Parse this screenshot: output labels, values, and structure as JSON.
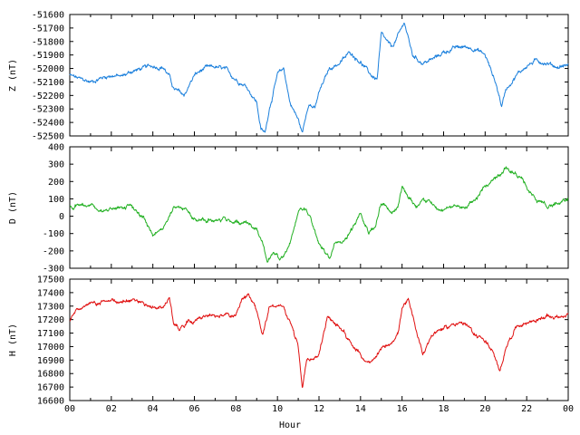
{
  "chart_data": [
    {
      "type": "line",
      "ylabel": "Z (nT)",
      "ylim": [
        -52500,
        -51600
      ],
      "yticks": [
        -52500,
        -52400,
        -52300,
        -52200,
        -52100,
        -52000,
        -51900,
        -51800,
        -51700,
        -51600
      ],
      "xlim": [
        0,
        24
      ],
      "xticks": [
        "00",
        "02",
        "04",
        "06",
        "08",
        "10",
        "12",
        "14",
        "16",
        "18",
        "20",
        "22",
        "00"
      ],
      "color": "#1a7fdc",
      "x": [
        0,
        0.5,
        1,
        1.5,
        2,
        2.5,
        3,
        3.5,
        4,
        4.5,
        4.8,
        5,
        5.5,
        6,
        6.5,
        7,
        7.5,
        8,
        8.5,
        9,
        9.2,
        9.4,
        9.6,
        10,
        10.3,
        10.6,
        11,
        11.2,
        11.5,
        11.8,
        12,
        12.5,
        13,
        13.5,
        14,
        14.5,
        14.8,
        15,
        15.5,
        16,
        16.1,
        16.5,
        17,
        17.5,
        18,
        18.5,
        19,
        19.5,
        20,
        20.5,
        20.8,
        21,
        21.5,
        22,
        22.5,
        23,
        23.5,
        24
      ],
      "values": [
        -52050,
        -52080,
        -52100,
        -52070,
        -52050,
        -52060,
        -52020,
        -52000,
        -51980,
        -51990,
        -52060,
        -52150,
        -52200,
        -52050,
        -52000,
        -51990,
        -52010,
        -52080,
        -52130,
        -52250,
        -52450,
        -52480,
        -52300,
        -52050,
        -52000,
        -52250,
        -52380,
        -52480,
        -52250,
        -52300,
        -52180,
        -52000,
        -51960,
        -51880,
        -51950,
        -52050,
        -52080,
        -51750,
        -51850,
        -51700,
        -51650,
        -51900,
        -51960,
        -51930,
        -51880,
        -51850,
        -51840,
        -51850,
        -51900,
        -52100,
        -52280,
        -52150,
        -52050,
        -51980,
        -51940,
        -51960,
        -51990,
        -51970
      ]
    },
    {
      "type": "line",
      "ylabel": "D (nT)",
      "ylim": [
        -300,
        400
      ],
      "yticks": [
        -300,
        -200,
        -100,
        0,
        100,
        200,
        300,
        400
      ],
      "xlim": [
        0,
        24
      ],
      "xticks": [
        "00",
        "02",
        "04",
        "06",
        "08",
        "10",
        "12",
        "14",
        "16",
        "18",
        "20",
        "22",
        "00"
      ],
      "color": "#22b022",
      "x": [
        0,
        0.5,
        1,
        1.5,
        2,
        2.5,
        3,
        3.5,
        4,
        4.5,
        5,
        5.5,
        6,
        6.5,
        7,
        7.5,
        8,
        8.5,
        9,
        9.3,
        9.5,
        9.8,
        10,
        10.3,
        10.6,
        11,
        11.3,
        11.6,
        12,
        12.5,
        12.8,
        13.2,
        13.6,
        14,
        14.4,
        14.7,
        15,
        15.4,
        15.8,
        16,
        16.3,
        16.7,
        17,
        17.5,
        18,
        18.5,
        19,
        19.5,
        20,
        20.5,
        21,
        21.5,
        22,
        22.5,
        23,
        23.5,
        24
      ],
      "values": [
        50,
        60,
        70,
        30,
        40,
        60,
        50,
        0,
        -100,
        -60,
        60,
        40,
        -10,
        -20,
        -20,
        -20,
        -30,
        -40,
        -70,
        -160,
        -260,
        -200,
        -230,
        -250,
        -150,
        20,
        40,
        -10,
        -160,
        -250,
        -150,
        -140,
        -80,
        30,
        -80,
        -60,
        80,
        30,
        50,
        170,
        120,
        60,
        110,
        60,
        40,
        60,
        50,
        80,
        170,
        230,
        280,
        240,
        170,
        80,
        60,
        80,
        100
      ]
    },
    {
      "type": "line",
      "ylabel": "H (nT)",
      "xlabel": "Hour",
      "ylim": [
        16600,
        17500
      ],
      "yticks": [
        16600,
        16700,
        16800,
        16900,
        17000,
        17100,
        17200,
        17300,
        17400,
        17500
      ],
      "xlim": [
        0,
        24
      ],
      "xticks": [
        "00",
        "02",
        "04",
        "06",
        "08",
        "10",
        "12",
        "14",
        "16",
        "18",
        "20",
        "22",
        "00"
      ],
      "color": "#e01010",
      "x": [
        0,
        0.3,
        0.7,
        1,
        1.5,
        2,
        2.5,
        3,
        3.5,
        4,
        4.5,
        4.8,
        5,
        5.3,
        5.7,
        6,
        6.5,
        7,
        7.5,
        8,
        8.3,
        8.6,
        9,
        9.3,
        9.6,
        10,
        10.3,
        10.6,
        11,
        11.2,
        11.4,
        11.7,
        12,
        12.4,
        12.8,
        13.2,
        13.6,
        14,
        14.4,
        14.7,
        15,
        15.4,
        15.8,
        16,
        16.3,
        16.6,
        17,
        17.4,
        17.8,
        18.2,
        18.6,
        19,
        19.5,
        20,
        20.4,
        20.7,
        21,
        21.5,
        22,
        22.5,
        23,
        23.5,
        24
      ],
      "values": [
        17200,
        17270,
        17300,
        17310,
        17320,
        17340,
        17340,
        17340,
        17320,
        17300,
        17280,
        17360,
        17170,
        17140,
        17200,
        17200,
        17230,
        17220,
        17240,
        17220,
        17340,
        17380,
        17260,
        17080,
        17300,
        17310,
        17290,
        17180,
        17000,
        16700,
        16900,
        16900,
        16950,
        17210,
        17160,
        17120,
        17000,
        16940,
        16870,
        16900,
        16980,
        17020,
        17100,
        17280,
        17340,
        17160,
        16950,
        17080,
        17130,
        17140,
        17180,
        17170,
        17090,
        17050,
        16950,
        16800,
        17000,
        17150,
        17180,
        17200,
        17220,
        17220,
        17240
      ]
    }
  ]
}
